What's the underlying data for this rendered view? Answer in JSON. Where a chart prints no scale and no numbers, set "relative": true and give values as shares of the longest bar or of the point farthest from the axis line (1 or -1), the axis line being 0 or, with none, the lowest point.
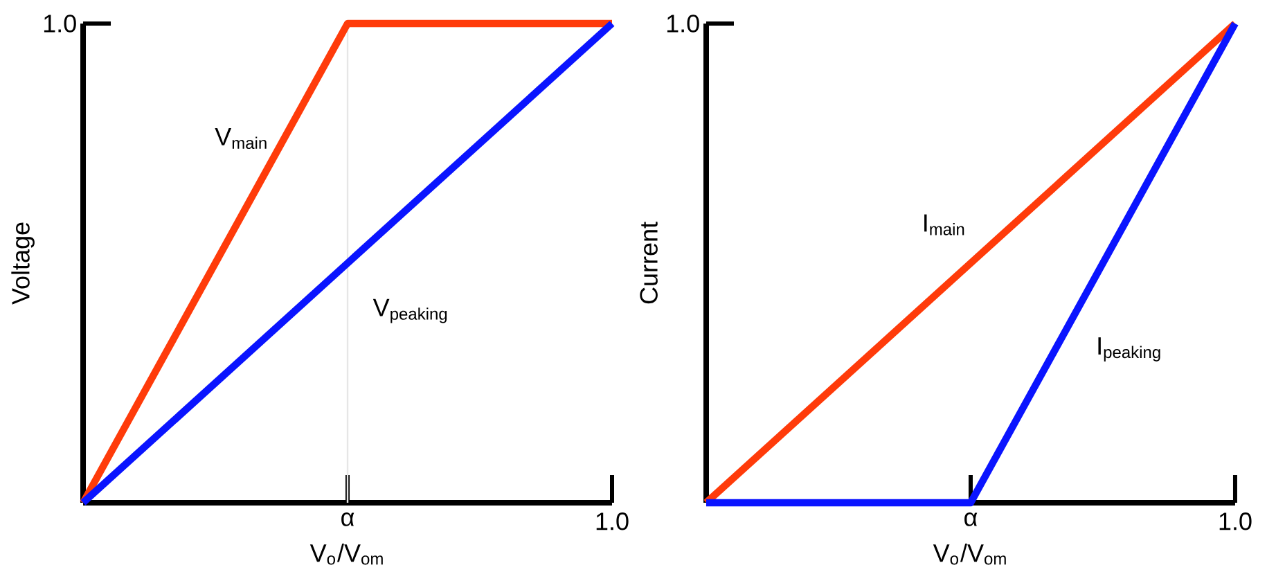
{
  "chart_data": [
    {
      "type": "line",
      "relative": true,
      "xlabel": "V$_{o}$/V$_{om}$",
      "ylabel": "Voltage",
      "categories": [
        null,
        "α",
        "1.0"
      ],
      "annotations": [
        "1.0"
      ],
      "ref_lines": [
        {
          "axis": "x",
          "value": "α",
          "color": "#e6e6e6"
        }
      ],
      "series": [
        {
          "name": "V$_{main}$",
          "color": "#ff3b0a",
          "values": [
            0,
            1,
            1
          ]
        },
        {
          "name": "V$_{peaking}$",
          "color": "#0a14ff",
          "values": [
            0,
            0.5,
            1
          ]
        }
      ]
    },
    {
      "type": "line",
      "relative": true,
      "xlabel": "V$_{o}$/V$_{om}$",
      "ylabel": "Current",
      "categories": [
        null,
        "α",
        "1.0"
      ],
      "annotations": [
        "1.0"
      ],
      "series": [
        {
          "name": "I$_{main}$",
          "color": "#ff3b0a",
          "values": [
            0,
            0.5,
            1
          ]
        },
        {
          "name": "I$_{peaking}$",
          "color": "#0a14ff",
          "values": [
            0,
            0,
            1
          ]
        }
      ]
    }
  ]
}
